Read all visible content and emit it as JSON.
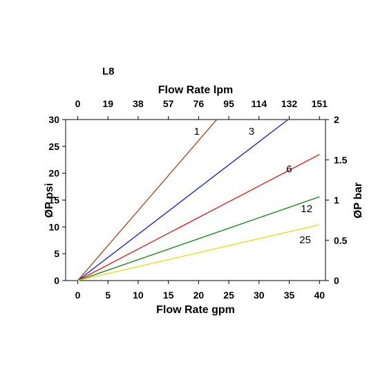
{
  "chart_data": {
    "type": "line",
    "title": "L8",
    "xlabel": "Flow Rate gpm",
    "x2label": "Flow Rate lpm",
    "ylabel": "ØP psi",
    "y2label": "ØP bar",
    "xlim": [
      -2,
      41
    ],
    "ylim": [
      0,
      30
    ],
    "y2lim": [
      0,
      2
    ],
    "x_ticks": [
      "0",
      "5",
      "10",
      "15",
      "20",
      "25",
      "30",
      "35",
      "40"
    ],
    "x2_ticks": [
      "0",
      "19",
      "38",
      "57",
      "76",
      "95",
      "114",
      "132",
      "151"
    ],
    "y_ticks": [
      "0",
      "5",
      "10",
      "15",
      "20",
      "25",
      "30"
    ],
    "y2_ticks": [
      "0",
      "0.5",
      "1",
      "1.5",
      "2"
    ],
    "grid": false,
    "series": [
      {
        "name": "1",
        "color": "#a0522d",
        "x": [
          0,
          23
        ],
        "y": [
          0,
          30
        ]
      },
      {
        "name": "3",
        "color": "#2222cc",
        "x": [
          0,
          34.8
        ],
        "y": [
          0,
          30
        ]
      },
      {
        "name": "6",
        "color": "#dd2222",
        "x": [
          0,
          40
        ],
        "y": [
          0,
          23.5
        ]
      },
      {
        "name": "12",
        "color": "#228822",
        "x": [
          0,
          40
        ],
        "y": [
          0,
          15.6
        ]
      },
      {
        "name": "25",
        "color": "#e6dc2a",
        "x": [
          0,
          40
        ],
        "y": [
          0,
          10.4
        ]
      }
    ]
  }
}
